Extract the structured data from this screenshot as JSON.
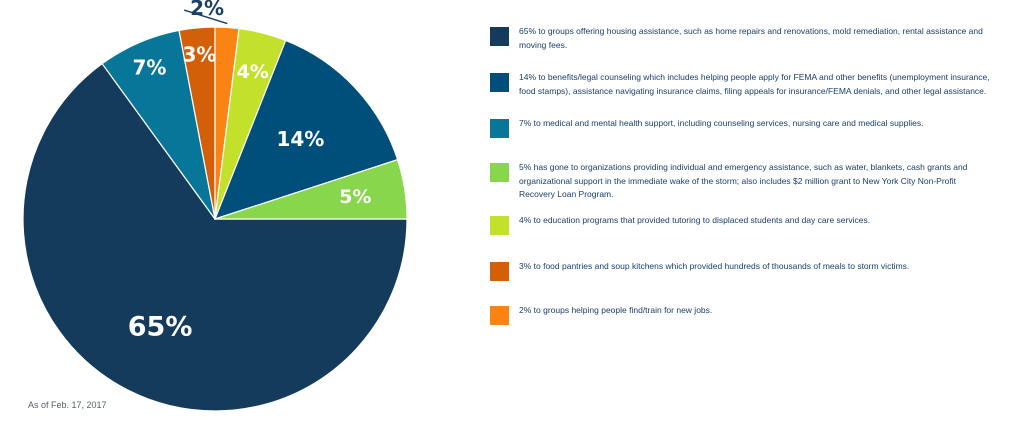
{
  "chart_data": {
    "type": "pie",
    "slices": [
      {
        "label": "65%",
        "value": 65,
        "color": "#143b5c",
        "description": "65% to groups offering housing assistance, such as home repairs and renovations, mold remediation, rental assistance and moving fees."
      },
      {
        "label": "7%",
        "value": 7,
        "color": "#087698",
        "description": "7% to medical and mental health support, including counseling services, nursing care and medical supplies."
      },
      {
        "label": "3%",
        "value": 3,
        "color": "#d45f09",
        "description": "3% to food pantries and soup kitchens which provided hundreds of thousands of meals to storm victims."
      },
      {
        "label": "2%",
        "value": 2,
        "color": "#fb8313",
        "description": "2% to groups helping people find/train for new jobs."
      },
      {
        "label": "4%",
        "value": 4,
        "color": "#c3e12b",
        "description": "4% to education programs that provided tutoring to displaced students and day care services."
      },
      {
        "label": "14%",
        "value": 14,
        "color": "#004f7a",
        "description": "14% to benefits/legal counseling which includes helping people apply for FEMA and other benefits (unemployment insurance, food stamps), assistance navigating insurance claims, filing appeals for insurance/FEMA denials, and other legal assistance."
      },
      {
        "label": "5%",
        "value": 5,
        "color": "#88d64b",
        "description": "5% has gone to organizations providing individual and emergency assistance, such as water, blankets, cash grants and organizational support in the immediate wake of the storm; also includes $2 million grant to New York City Non-Profit Recovery Loan Program."
      }
    ],
    "legend": [
      {
        "text": "65% to groups offering housing assistance, such as home repairs and renovations, mold remediation, rental assistance and moving fees.",
        "color": "#143b5c"
      },
      {
        "text": "14% to benefits/legal counseling which includes helping people apply for FEMA and other benefits (unemployment insurance, food stamps), assistance navigating insurance claims, filing appeals for insurance/FEMA denials, and other legal assistance.",
        "color": "#004f7a"
      },
      {
        "text": "7% to medical and mental health support, including counseling services, nursing care and medical supplies.",
        "color": "#087698"
      },
      {
        "text": "5% has gone to organizations providing individual and emergency assistance, such as water, blankets, cash grants and organizational support in the immediate wake of the storm; also includes $2 million grant to New York City Non-Profit Recovery Loan Program.",
        "color": "#88d64b"
      },
      {
        "text": "4% to education programs that provided tutoring to displaced students and day care services.",
        "color": "#c3e12b"
      },
      {
        "text": "3% to food pantries and soup kitchens which provided hundreds of thousands of meals to storm victims.",
        "color": "#d45f09"
      },
      {
        "text": "2% to groups helping people find/train for new jobs.",
        "color": "#fb8313"
      }
    ],
    "label_colors": {
      "inside": "#ffffff",
      "outside": "#1b3f66"
    }
  },
  "footnote": "As of Feb. 17, 2017"
}
